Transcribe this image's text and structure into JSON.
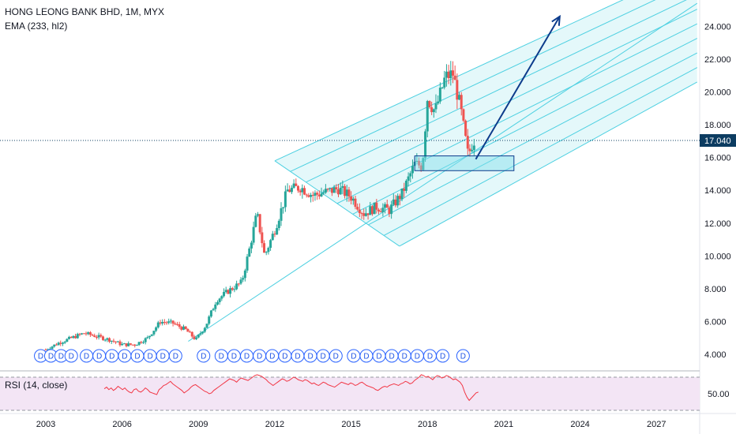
{
  "header": {
    "title": "HONG LEONG BANK BHD, 1M, MYX",
    "indicator": "EMA (233, hl2)"
  },
  "rsi": {
    "label": "RSI (14, close)",
    "level_label": "50.00",
    "values": [
      56,
      58,
      55,
      57,
      54,
      56,
      59,
      57,
      55,
      57,
      54,
      52,
      51,
      55,
      56,
      53,
      52,
      54,
      57,
      55,
      52,
      51,
      50,
      49,
      55,
      57,
      60,
      61,
      63,
      65,
      62,
      60,
      58,
      56,
      54,
      51,
      53,
      55,
      58,
      60,
      61,
      59,
      57,
      55,
      53,
      52,
      50,
      51,
      54,
      56,
      58,
      60,
      62,
      64,
      66,
      68,
      67,
      66,
      64,
      67,
      69,
      68,
      67,
      66,
      68,
      70,
      72,
      73,
      72,
      71,
      69,
      67,
      64,
      62,
      60,
      62,
      64,
      66,
      68,
      67,
      65,
      66,
      68,
      70,
      69,
      67,
      66,
      65,
      67,
      66,
      64,
      62,
      63,
      61,
      60,
      62,
      64,
      63,
      61,
      60,
      59,
      58,
      60,
      62,
      64,
      63,
      62,
      61,
      63,
      62,
      60,
      61,
      63,
      64,
      62,
      60,
      59,
      58,
      57,
      55,
      54,
      56,
      58,
      59,
      58,
      60,
      61,
      62,
      61,
      60,
      62,
      63,
      65,
      64,
      62,
      63,
      66,
      68,
      70,
      73,
      72,
      70,
      71,
      69,
      67,
      70,
      72,
      71,
      69,
      70,
      72,
      71,
      69,
      67,
      68,
      66,
      64,
      60,
      52,
      46,
      42,
      45,
      48,
      51,
      52
    ]
  },
  "chart_data": {
    "type": "candlestick",
    "title": "HONG LEONG BANK BHD, 1M, MYX",
    "interval": "1M",
    "y_axis": {
      "ticks": [
        "4.000",
        "6.000",
        "8.000",
        "10.000",
        "12.000",
        "14.000",
        "16.000",
        "18.000",
        "20.000",
        "22.000",
        "24.000"
      ],
      "range": [
        3.0,
        25.6
      ]
    },
    "x_axis": {
      "ticks": [
        "2003",
        "2006",
        "2009",
        "2012",
        "2015",
        "2018",
        "2021",
        "2024",
        "2027"
      ],
      "range": [
        2001.2,
        2028.7
      ]
    },
    "last_price": "17.040",
    "closes": [
      {
        "t": 2003.0,
        "c": 4.3
      },
      {
        "t": 2003.5,
        "c": 4.7
      },
      {
        "t": 2004.0,
        "c": 5.0
      },
      {
        "t": 2004.5,
        "c": 5.3
      },
      {
        "t": 2005.0,
        "c": 5.1
      },
      {
        "t": 2005.5,
        "c": 4.9
      },
      {
        "t": 2006.0,
        "c": 4.6
      },
      {
        "t": 2006.5,
        "c": 4.6
      },
      {
        "t": 2007.0,
        "c": 5.0
      },
      {
        "t": 2007.5,
        "c": 6.0
      },
      {
        "t": 2008.0,
        "c": 5.9
      },
      {
        "t": 2008.5,
        "c": 5.5
      },
      {
        "t": 2008.9,
        "c": 4.9
      },
      {
        "t": 2009.3,
        "c": 5.8
      },
      {
        "t": 2009.7,
        "c": 7.3
      },
      {
        "t": 2010.2,
        "c": 7.9
      },
      {
        "t": 2010.7,
        "c": 8.4
      },
      {
        "t": 2011.0,
        "c": 10.4
      },
      {
        "t": 2011.3,
        "c": 12.6
      },
      {
        "t": 2011.6,
        "c": 10.0
      },
      {
        "t": 2012.0,
        "c": 11.6
      },
      {
        "t": 2012.5,
        "c": 14.0
      },
      {
        "t": 2013.0,
        "c": 14.2
      },
      {
        "t": 2013.5,
        "c": 13.7
      },
      {
        "t": 2014.0,
        "c": 13.9
      },
      {
        "t": 2014.5,
        "c": 14.1
      },
      {
        "t": 2015.0,
        "c": 13.6
      },
      {
        "t": 2015.5,
        "c": 12.6
      },
      {
        "t": 2016.0,
        "c": 13.0
      },
      {
        "t": 2016.5,
        "c": 12.8
      },
      {
        "t": 2017.0,
        "c": 13.8
      },
      {
        "t": 2017.5,
        "c": 15.6
      },
      {
        "t": 2017.8,
        "c": 15.5
      },
      {
        "t": 2018.0,
        "c": 19.6
      },
      {
        "t": 2018.3,
        "c": 18.8
      },
      {
        "t": 2018.7,
        "c": 20.9
      },
      {
        "t": 2019.0,
        "c": 21.1
      },
      {
        "t": 2019.3,
        "c": 19.0
      },
      {
        "t": 2019.6,
        "c": 16.1
      },
      {
        "t": 2019.8,
        "c": 17.04
      }
    ],
    "dividend_marker_label": "D",
    "dividends": [
      2002.8,
      2003.2,
      2003.6,
      2004.0,
      2004.6,
      2005.1,
      2005.6,
      2006.1,
      2006.6,
      2007.1,
      2007.6,
      2008.1,
      2009.2,
      2009.9,
      2010.4,
      2010.9,
      2011.4,
      2011.9,
      2012.4,
      2012.9,
      2013.4,
      2013.9,
      2014.4,
      2015.1,
      2015.6,
      2016.1,
      2016.6,
      2017.1,
      2017.6,
      2018.1,
      2018.6,
      2019.4
    ],
    "channel": {
      "upper_start": {
        "t": 2008.6,
        "y": 4.8
      },
      "upper_end": {
        "t": 2028.6,
        "y": 25.4
      },
      "fork_top": {
        "t": 2012.0,
        "y": 15.8
      },
      "fork_bottom": {
        "t": 2016.9,
        "y": 10.6
      },
      "fork_end_top": {
        "t": 2028.6,
        "y": 27.7
      },
      "fork_end_bot": {
        "t": 2028.6,
        "y": 20.6
      },
      "lines": 8
    },
    "zone": {
      "t0": 2017.5,
      "t1": 2021.4,
      "y0": 15.2,
      "y1": 16.1
    },
    "projection": {
      "from": {
        "t": 2019.9,
        "y": 15.9
      },
      "to": {
        "t": 2023.2,
        "y": 24.6
      }
    }
  },
  "colors": {
    "up": "#26a69a",
    "down": "#ef5350",
    "channel": "#4dd0e1",
    "channel_fill": "#b2ebf2",
    "arrow": "#0d3c8c",
    "price_tag": "#0c3c61",
    "rsi_line": "#f23645",
    "rsi_band": "#f3e5f5"
  }
}
